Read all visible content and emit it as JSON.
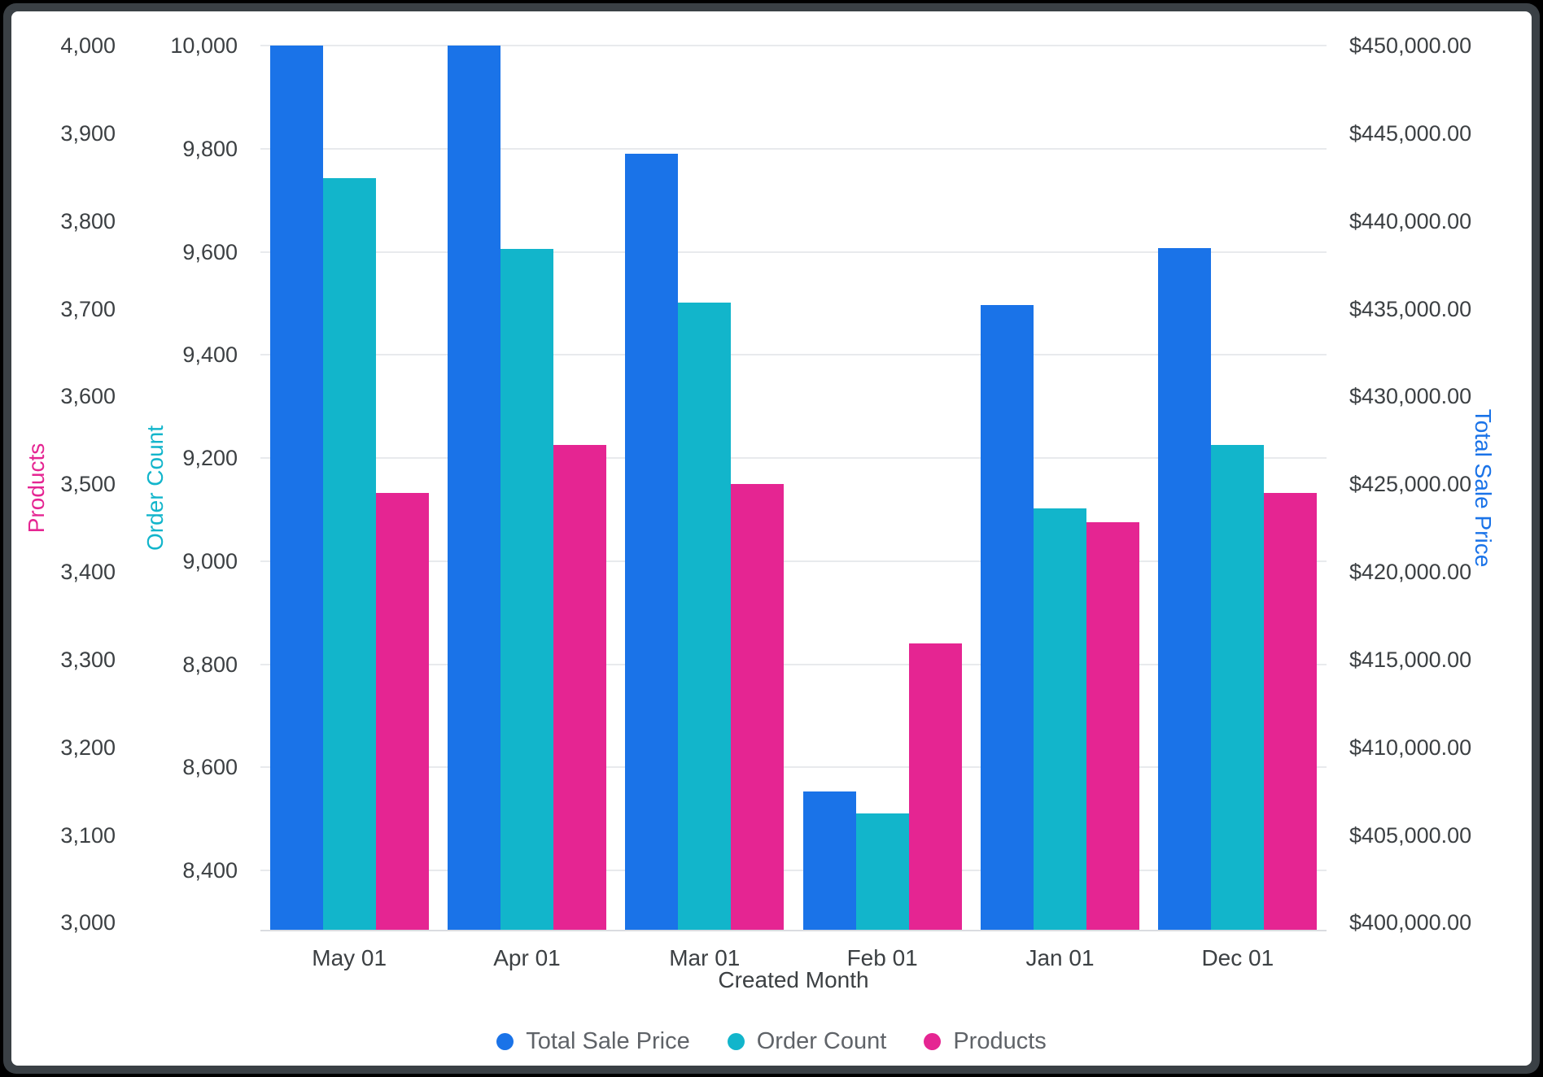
{
  "chart_data": {
    "type": "bar",
    "title": "",
    "xlabel": "Created Month",
    "categories": [
      "May 01",
      "Apr 01",
      "Mar 01",
      "Feb 01",
      "Jan 01",
      "Dec 01"
    ],
    "series": [
      {
        "name": "Total Sale Price",
        "axis": "price",
        "color": "#1a73e8",
        "values": [
          450000,
          450000,
          443850,
          407500,
          435200,
          438450
        ]
      },
      {
        "name": "Order Count",
        "axis": "order",
        "color": "#12b5cb",
        "values": [
          9743,
          9606,
          9501,
          8511,
          9102,
          9225
        ]
      },
      {
        "name": "Products",
        "axis": "products",
        "color": "#e52592",
        "values": [
          3490,
          3545,
          3500,
          3318,
          3457,
          3490
        ]
      }
    ],
    "axes": {
      "products": {
        "title": "Products",
        "side": "left-outer",
        "color": "#e52592",
        "min": 2992,
        "max": 4000,
        "tick_start": 3000,
        "tick_step": 100,
        "tick_end": 4000,
        "format": "number"
      },
      "order": {
        "title": "Order Count",
        "side": "left-inner",
        "color": "#12b5cb",
        "min": 8285,
        "max": 10000,
        "tick_start": 8400,
        "tick_step": 200,
        "tick_end": 10000,
        "format": "number",
        "gridlines": true
      },
      "price": {
        "title": "Total Sale Price",
        "side": "right",
        "color": "#1a73e8",
        "min": 399600,
        "max": 450000,
        "tick_start": 400000,
        "tick_step": 5000,
        "tick_end": 450000,
        "format": "currency"
      }
    },
    "legend": {
      "position": "bottom",
      "entries": [
        "Total Sale Price",
        "Order Count",
        "Products"
      ]
    },
    "grid": "horizontal"
  }
}
